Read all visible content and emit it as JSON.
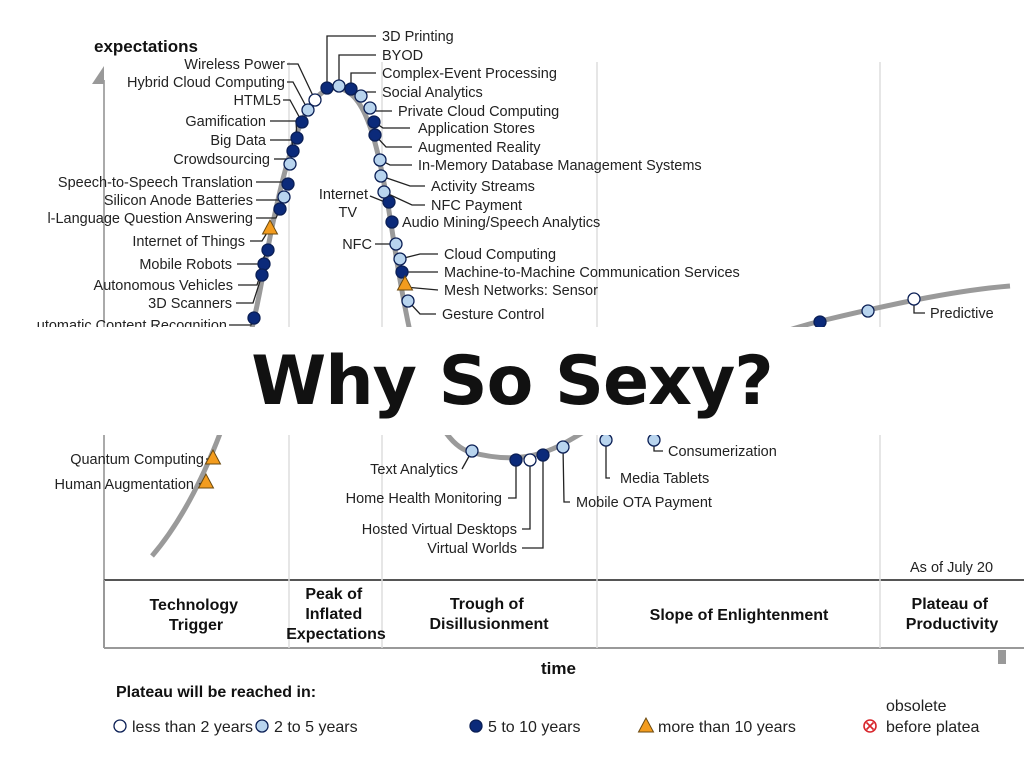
{
  "colors": {
    "light": "#ffffff",
    "medium": "#b8d4ee",
    "dark": "#0b2a7a",
    "triangle": "#f39c1e",
    "obsolete": "#d8262c",
    "curve": "#9a9a9a"
  },
  "axis": {
    "y_label": "expectations",
    "x_label": "time"
  },
  "phases": [
    [
      "Technology",
      "Trigger"
    ],
    [
      "Peak of",
      "Inflated",
      "Expectations"
    ],
    [
      "Trough of",
      "Disillusionment"
    ],
    [
      "Slope of Enlightenment"
    ],
    [
      "Plateau of",
      "Productivity"
    ]
  ],
  "as_of": "As of July 20",
  "banner": "Why So Sexy?",
  "legend": {
    "title": "Plateau will be reached in:",
    "items": [
      {
        "icon": "light",
        "label": "less than 2 years"
      },
      {
        "icon": "medium",
        "label": "2 to 5 years"
      },
      {
        "icon": "dark",
        "label": "5 to 10 years"
      },
      {
        "icon": "triangle",
        "label": "more than 10 years"
      },
      {
        "icon": "obsolete",
        "label": "obsolete",
        "label2": "before platea"
      }
    ]
  },
  "technologies": [
    {
      "name": "Wireless Power",
      "marker": "light"
    },
    {
      "name": "Hybrid Cloud Computing",
      "marker": "medium"
    },
    {
      "name": "HTML5",
      "marker": "dark"
    },
    {
      "name": "Gamification",
      "marker": "dark"
    },
    {
      "name": "Big Data",
      "marker": "dark"
    },
    {
      "name": "Crowdsourcing",
      "marker": "medium"
    },
    {
      "name": "Speech-to-Speech Translation",
      "marker": "dark"
    },
    {
      "name": "Silicon Anode Batteries",
      "marker": "medium"
    },
    {
      "name": "l-Language Question Answering",
      "marker": "dark"
    },
    {
      "name": "Internet of Things",
      "marker": "triangle"
    },
    {
      "name": "Mobile Robots",
      "marker": "dark"
    },
    {
      "name": "Autonomous Vehicles",
      "marker": "dark"
    },
    {
      "name": "3D Scanners",
      "marker": "dark"
    },
    {
      "name": "utomatic Content Recognition",
      "marker": "dark"
    },
    {
      "name": "3D Printing",
      "marker": "dark"
    },
    {
      "name": "BYOD",
      "marker": "medium"
    },
    {
      "name": "Complex-Event Processing",
      "marker": "dark"
    },
    {
      "name": "Social Analytics",
      "marker": "medium"
    },
    {
      "name": "Private Cloud Computing",
      "marker": "medium"
    },
    {
      "name": "Application Stores",
      "marker": "dark"
    },
    {
      "name": "Augmented Reality",
      "marker": "dark"
    },
    {
      "name": "In-Memory Database Management Systems",
      "marker": "medium"
    },
    {
      "name": "Activity Streams",
      "marker": "medium"
    },
    {
      "name": "Internet TV",
      "marker": "dark"
    },
    {
      "name": "NFC Payment",
      "marker": "medium"
    },
    {
      "name": "Audio Mining/Speech Analytics",
      "marker": "dark"
    },
    {
      "name": "NFC",
      "marker": "medium"
    },
    {
      "name": "Cloud Computing",
      "marker": "medium"
    },
    {
      "name": "Machine-to-Machine Communication Services",
      "marker": "dark"
    },
    {
      "name": "Mesh Networks: Sensor",
      "marker": "triangle"
    },
    {
      "name": "Gesture Control",
      "marker": "medium"
    },
    {
      "name": "Predictive",
      "marker": "light"
    },
    {
      "name": "Quantum Computing",
      "marker": "triangle"
    },
    {
      "name": "Human Augmentation",
      "marker": "triangle"
    },
    {
      "name": "Text Analytics",
      "marker": "medium"
    },
    {
      "name": "Home Health Monitoring",
      "marker": "dark"
    },
    {
      "name": "Hosted Virtual Desktops",
      "marker": "light"
    },
    {
      "name": "Virtual Worlds",
      "marker": "dark"
    },
    {
      "name": "Mobile OTA Payment",
      "marker": "medium"
    },
    {
      "name": "Media Tablets",
      "marker": "medium"
    },
    {
      "name": "Consumerization",
      "marker": "medium"
    }
  ]
}
